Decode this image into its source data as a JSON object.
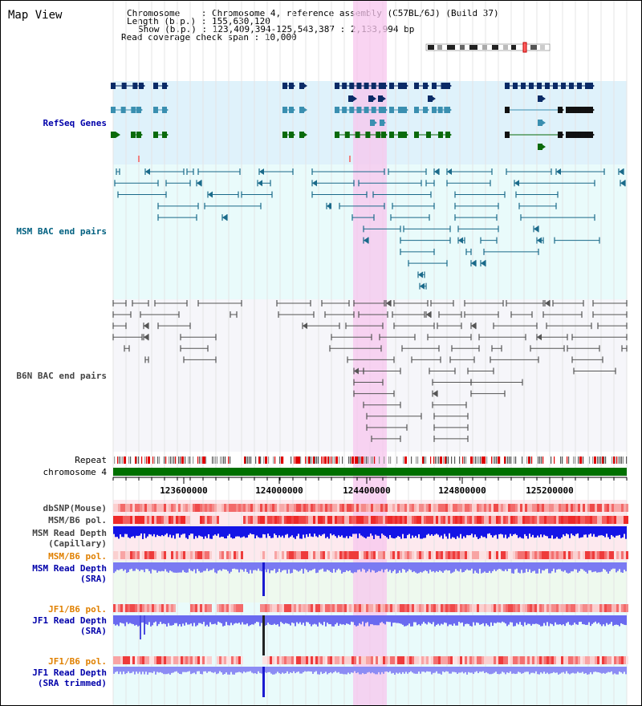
{
  "title": "Map View",
  "info": {
    "chromosome_label": "Chromosome",
    "chromosome_value": "Chromosome 4, reference assembly (C57BL/6J) (Build 37)",
    "length_label": "Length (b.p.)",
    "length_value": "155,630,120",
    "show_label": "Show (b.p.)",
    "show_value": "123,409,394-125,543,387 : 2,133,994 bp",
    "coverage_label": "Read coverage check span",
    "coverage_value": "10,000"
  },
  "tracks": {
    "refseq": "RefSeq Genes",
    "msm_bac": "MSM BAC end pairs",
    "b6n_bac": "B6N BAC end pairs",
    "repeat": "Repeat",
    "chromosome": "chromosome 4",
    "dbsnp": "dbSNP(Mouse)",
    "msm_b6_pol_1": "MSM/B6 pol.",
    "msm_read_depth_cap_1": "MSM Read Depth",
    "msm_read_depth_cap_2": "(Capillary)",
    "msm_b6_pol_2": "MSM/B6 pol.",
    "msm_read_depth_sra_1": "MSM Read Depth",
    "msm_read_depth_sra_2": "(SRA)",
    "jf1_b6_pol_1": "JF1/B6 pol.",
    "jf1_read_depth_sra_1": "JF1 Read Depth",
    "jf1_read_depth_sra_2": "(SRA)",
    "jf1_b6_pol_2": "JF1/B6 pol.",
    "jf1_read_depth_trim_1": "JF1 Read Depth",
    "jf1_read_depth_trim_2": "(SRA trimmed)"
  },
  "axis_ticks": [
    "123600000",
    "124000000",
    "124400000",
    "124800000",
    "125200000"
  ],
  "colors": {
    "refseq_bg": "#dff2fb",
    "msm_bac_bg": "#e9fbfb",
    "b6n_bac_bg": "#f6f6fa",
    "highlight": "#f7c6ee",
    "chromosome_bar": "#007000",
    "gene_dark": "#0a2a66",
    "gene_mid": "#3a8fb0",
    "gene_green": "#0a6a0a",
    "read_depth": "#1010e0"
  }
}
